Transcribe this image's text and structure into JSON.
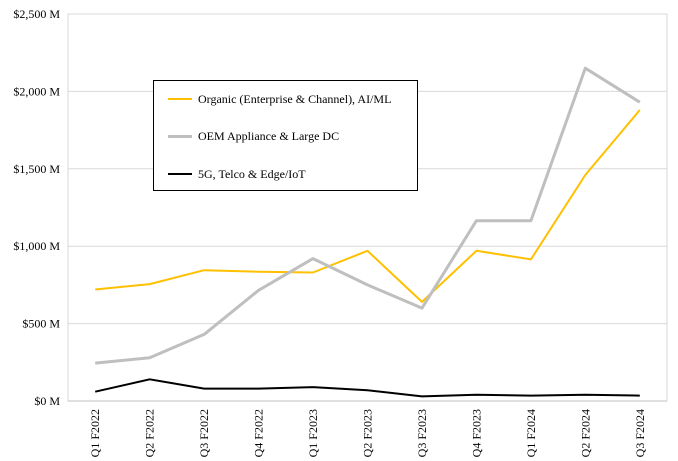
{
  "chart_data": {
    "type": "line",
    "title": "",
    "xlabel": "",
    "ylabel": "",
    "categories": [
      "Q1 F2022",
      "Q2 F2022",
      "Q3 F2022",
      "Q4 F2022",
      "Q1 F2023",
      "Q2 F2023",
      "Q3 F2023",
      "Q4 F2023",
      "Q1 F2024",
      "Q2 F2024",
      "Q3 F2024"
    ],
    "ylim": [
      0,
      2500
    ],
    "yticks": [
      0,
      500,
      1000,
      1500,
      2000,
      2500
    ],
    "ytick_labels": [
      "$0 M",
      "$500 M",
      "$1,000 M",
      "$1,500 M",
      "$2,000 M",
      "$2,500 M"
    ],
    "grid": "horizontal",
    "legend_position": "top-left",
    "series": [
      {
        "name": "Organic (Enterprise & Channel), AI/ML",
        "color": "#FFC000",
        "values": [
          720,
          755,
          845,
          835,
          830,
          970,
          640,
          970,
          915,
          1460,
          1880
        ]
      },
      {
        "name": "OEM Appliance & Large DC",
        "color": "#BFBFBF",
        "values": [
          245,
          280,
          430,
          715,
          920,
          750,
          600,
          1165,
          1165,
          2150,
          1930
        ]
      },
      {
        "name": "5G, Telco & Edge/IoT",
        "color": "#000000",
        "values": [
          60,
          140,
          80,
          80,
          90,
          70,
          30,
          40,
          35,
          40,
          35
        ]
      }
    ]
  }
}
